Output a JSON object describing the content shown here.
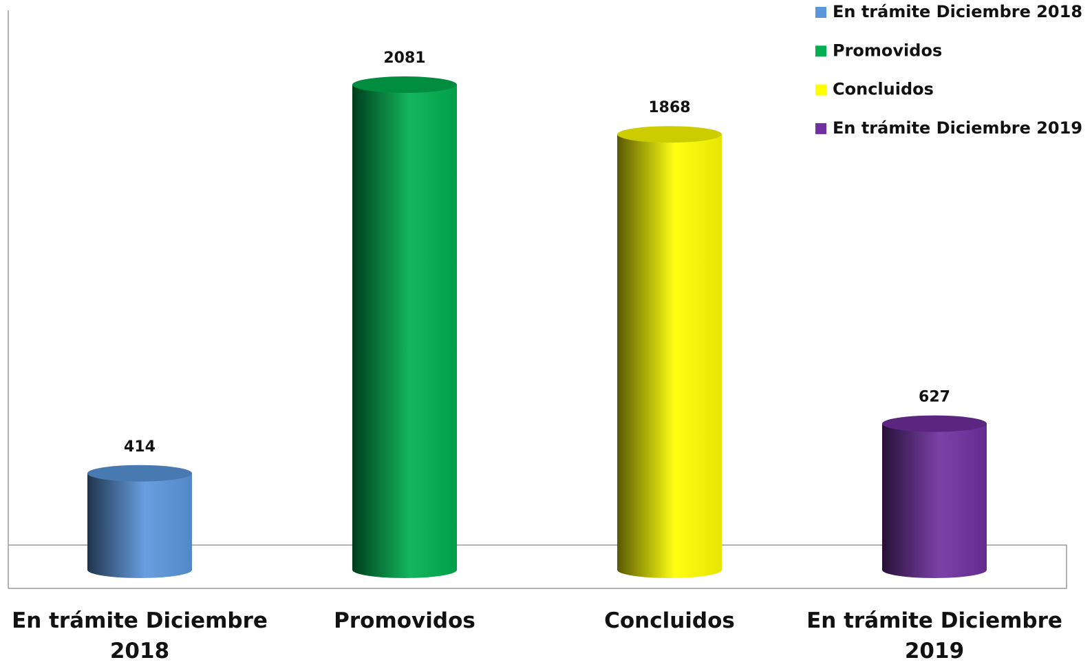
{
  "chart_data": {
    "type": "bar",
    "categories": [
      "En trámite Diciembre 2018",
      "Promovidos",
      "Concluidos",
      "En trámite Diciembre 2019"
    ],
    "values": [
      414,
      2081,
      1868,
      627
    ],
    "colors": [
      "#5b97dd",
      "#00b050",
      "#ffff00",
      "#7030a0"
    ],
    "ylim": [
      0,
      2400
    ],
    "legend": "upper right"
  }
}
